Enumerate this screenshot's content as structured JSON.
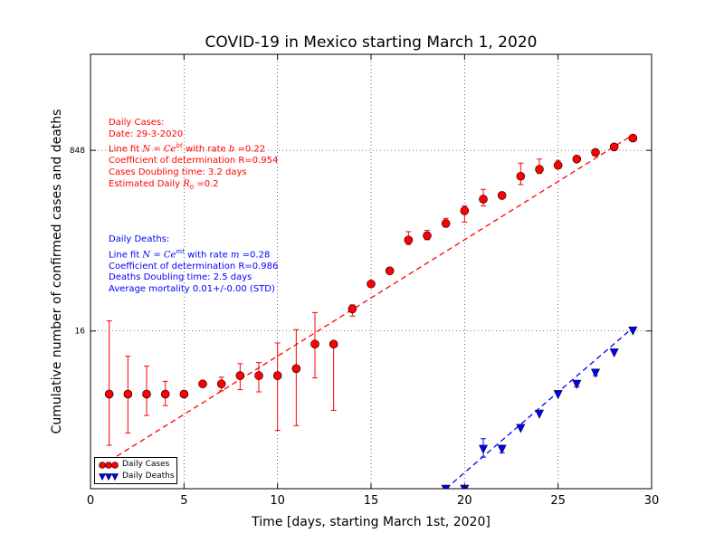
{
  "chart_data": {
    "type": "scatter",
    "title": "COVID-19 in Mexico starting March 1, 2020",
    "xlabel": "Time [days, starting March 1st, 2020]",
    "ylabel": "Cumulative number of confirmed cases and deaths",
    "xlim": [
      0,
      30
    ],
    "x_ticks": [
      "0",
      "5",
      "10",
      "15",
      "20",
      "25",
      "30"
    ],
    "y_scale": "log",
    "ylim": [
      0.5,
      7000
    ],
    "y_ticks": [
      16,
      848
    ],
    "y_tick_labels": [
      "16",
      "848"
    ],
    "grid": true,
    "legend_position": "bottom-left",
    "series": [
      {
        "name": "Daily Cases",
        "color": "#ff0000",
        "marker": "circle",
        "x": [
          1,
          2,
          3,
          4,
          5,
          6,
          7,
          8,
          9,
          10,
          11,
          12,
          13,
          14,
          15,
          16,
          17,
          18,
          19,
          20,
          21,
          22,
          23,
          24,
          25,
          26,
          27,
          28,
          29
        ],
        "y": [
          4,
          4,
          4,
          4,
          4,
          5,
          5,
          6,
          6,
          6,
          7,
          12,
          12,
          26,
          45,
          60,
          118,
          130,
          170,
          225,
          290,
          315,
          480,
          560,
          610,
          700,
          810,
          915,
          1110
        ],
        "err_low": [
          2.7,
          2.3,
          1.5,
          0.9,
          0,
          0,
          0.7,
          1.6,
          1.8,
          4.2,
          5.0,
          6.3,
          9.2,
          3.8,
          0,
          0,
          11,
          11,
          0,
          50,
          40,
          0,
          80,
          50,
          0,
          0,
          0,
          0,
          0
        ],
        "err_high": [
          16,
          5.2,
          3.4,
          1.3,
          0,
          0,
          0.8,
          1.8,
          2.0,
          6.3,
          9.5,
          12,
          0,
          2.4,
          0,
          0,
          24,
          16,
          20,
          25,
          70,
          0,
          160,
          140,
          70,
          0,
          0,
          0,
          0
        ]
      },
      {
        "name": "Daily Deaths",
        "color": "#0000ff",
        "marker": "triangle-down",
        "x": [
          19,
          20,
          21,
          22,
          23,
          24,
          25,
          26,
          27,
          28,
          29
        ],
        "y": [
          0.5,
          0.5,
          1.2,
          1.2,
          1.9,
          2.6,
          4.0,
          5.0,
          6.4,
          10.0,
          16.2
        ],
        "err_low": [
          0,
          0,
          0.2,
          0.1,
          0,
          0,
          0,
          0.3,
          0.4,
          0,
          0
        ],
        "err_high": [
          0,
          0,
          0.3,
          0.1,
          0,
          0,
          0,
          0.4,
          0.4,
          0,
          0
        ]
      }
    ],
    "fits": [
      {
        "name": "cases-fit",
        "color": "#ff0000",
        "x": [
          1,
          29
        ],
        "y": [
          0.92,
          1190
        ]
      },
      {
        "name": "deaths-fit",
        "color": "#0000ff",
        "x": [
          19,
          29
        ],
        "y": [
          0.5,
          17.2
        ]
      }
    ]
  },
  "annotations": {
    "cases": {
      "heading": "Daily Cases:",
      "date": "Date: 29-3-2020",
      "fit_prefix": "Line fit ",
      "fit_formula": "N = Ce",
      "fit_exp": "bt",
      "fit_rate_text": " with rate ",
      "fit_rate_sym": "b",
      "fit_rate_val": " =0.22",
      "coef": "Coefficient of determination R=0.954",
      "doubling": "Cases Doubling time: 3.2 days",
      "r0_prefix": "Estimated Daily ",
      "r0_sym": "R",
      "r0_sub": "0",
      "r0_val": " =0.2"
    },
    "deaths": {
      "heading": "Daily Deaths:",
      "fit_prefix": "Line fit ",
      "fit_formula": "N = Ce",
      "fit_exp": "mt",
      "fit_rate_text": " with rate ",
      "fit_rate_sym": "m",
      "fit_rate_val": " =0.28",
      "coef": "Coefficient of determination R=0.986",
      "doubling": "Deaths Doubling time: 2.5 days",
      "mortality": "Average mortality 0.01+/-0.00 (STD)"
    }
  },
  "legend": {
    "cases_label": "Daily Cases",
    "deaths_label": "Daily Deaths"
  }
}
